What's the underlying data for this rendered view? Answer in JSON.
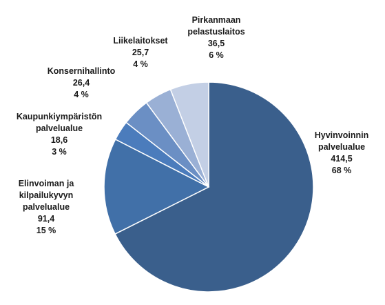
{
  "chart_data": {
    "type": "pie",
    "title": "",
    "slices": [
      {
        "name_lines": [
          "Hyvinvoinnin",
          "palvelualue"
        ],
        "value": 414.5,
        "value_label": "414,5",
        "percent_label": "68 %",
        "color": "#3a5f8c"
      },
      {
        "name_lines": [
          "Elinvoiman ja",
          "kilpailukyvyn",
          "palvelualue"
        ],
        "value": 91.4,
        "value_label": "91,4",
        "percent_label": "15 %",
        "color": "#4170a8"
      },
      {
        "name_lines": [
          "Kaupunkiympäristön",
          "palvelualue"
        ],
        "value": 18.6,
        "value_label": "18,6",
        "percent_label": "3 %",
        "color": "#4b7cbc"
      },
      {
        "name_lines": [
          "Konsernihallinto"
        ],
        "value": 26.4,
        "value_label": "26,4",
        "percent_label": "4 %",
        "color": "#6b8fc4"
      },
      {
        "name_lines": [
          "Liikelaitokset"
        ],
        "value": 25.7,
        "value_label": "25,7",
        "percent_label": "4 %",
        "color": "#9ab0d5"
      },
      {
        "name_lines": [
          "Pirkanmaan",
          "pelastuslaitos"
        ],
        "value": 36.5,
        "value_label": "36,5",
        "percent_label": "6 %",
        "color": "#c3cfe5"
      }
    ]
  }
}
